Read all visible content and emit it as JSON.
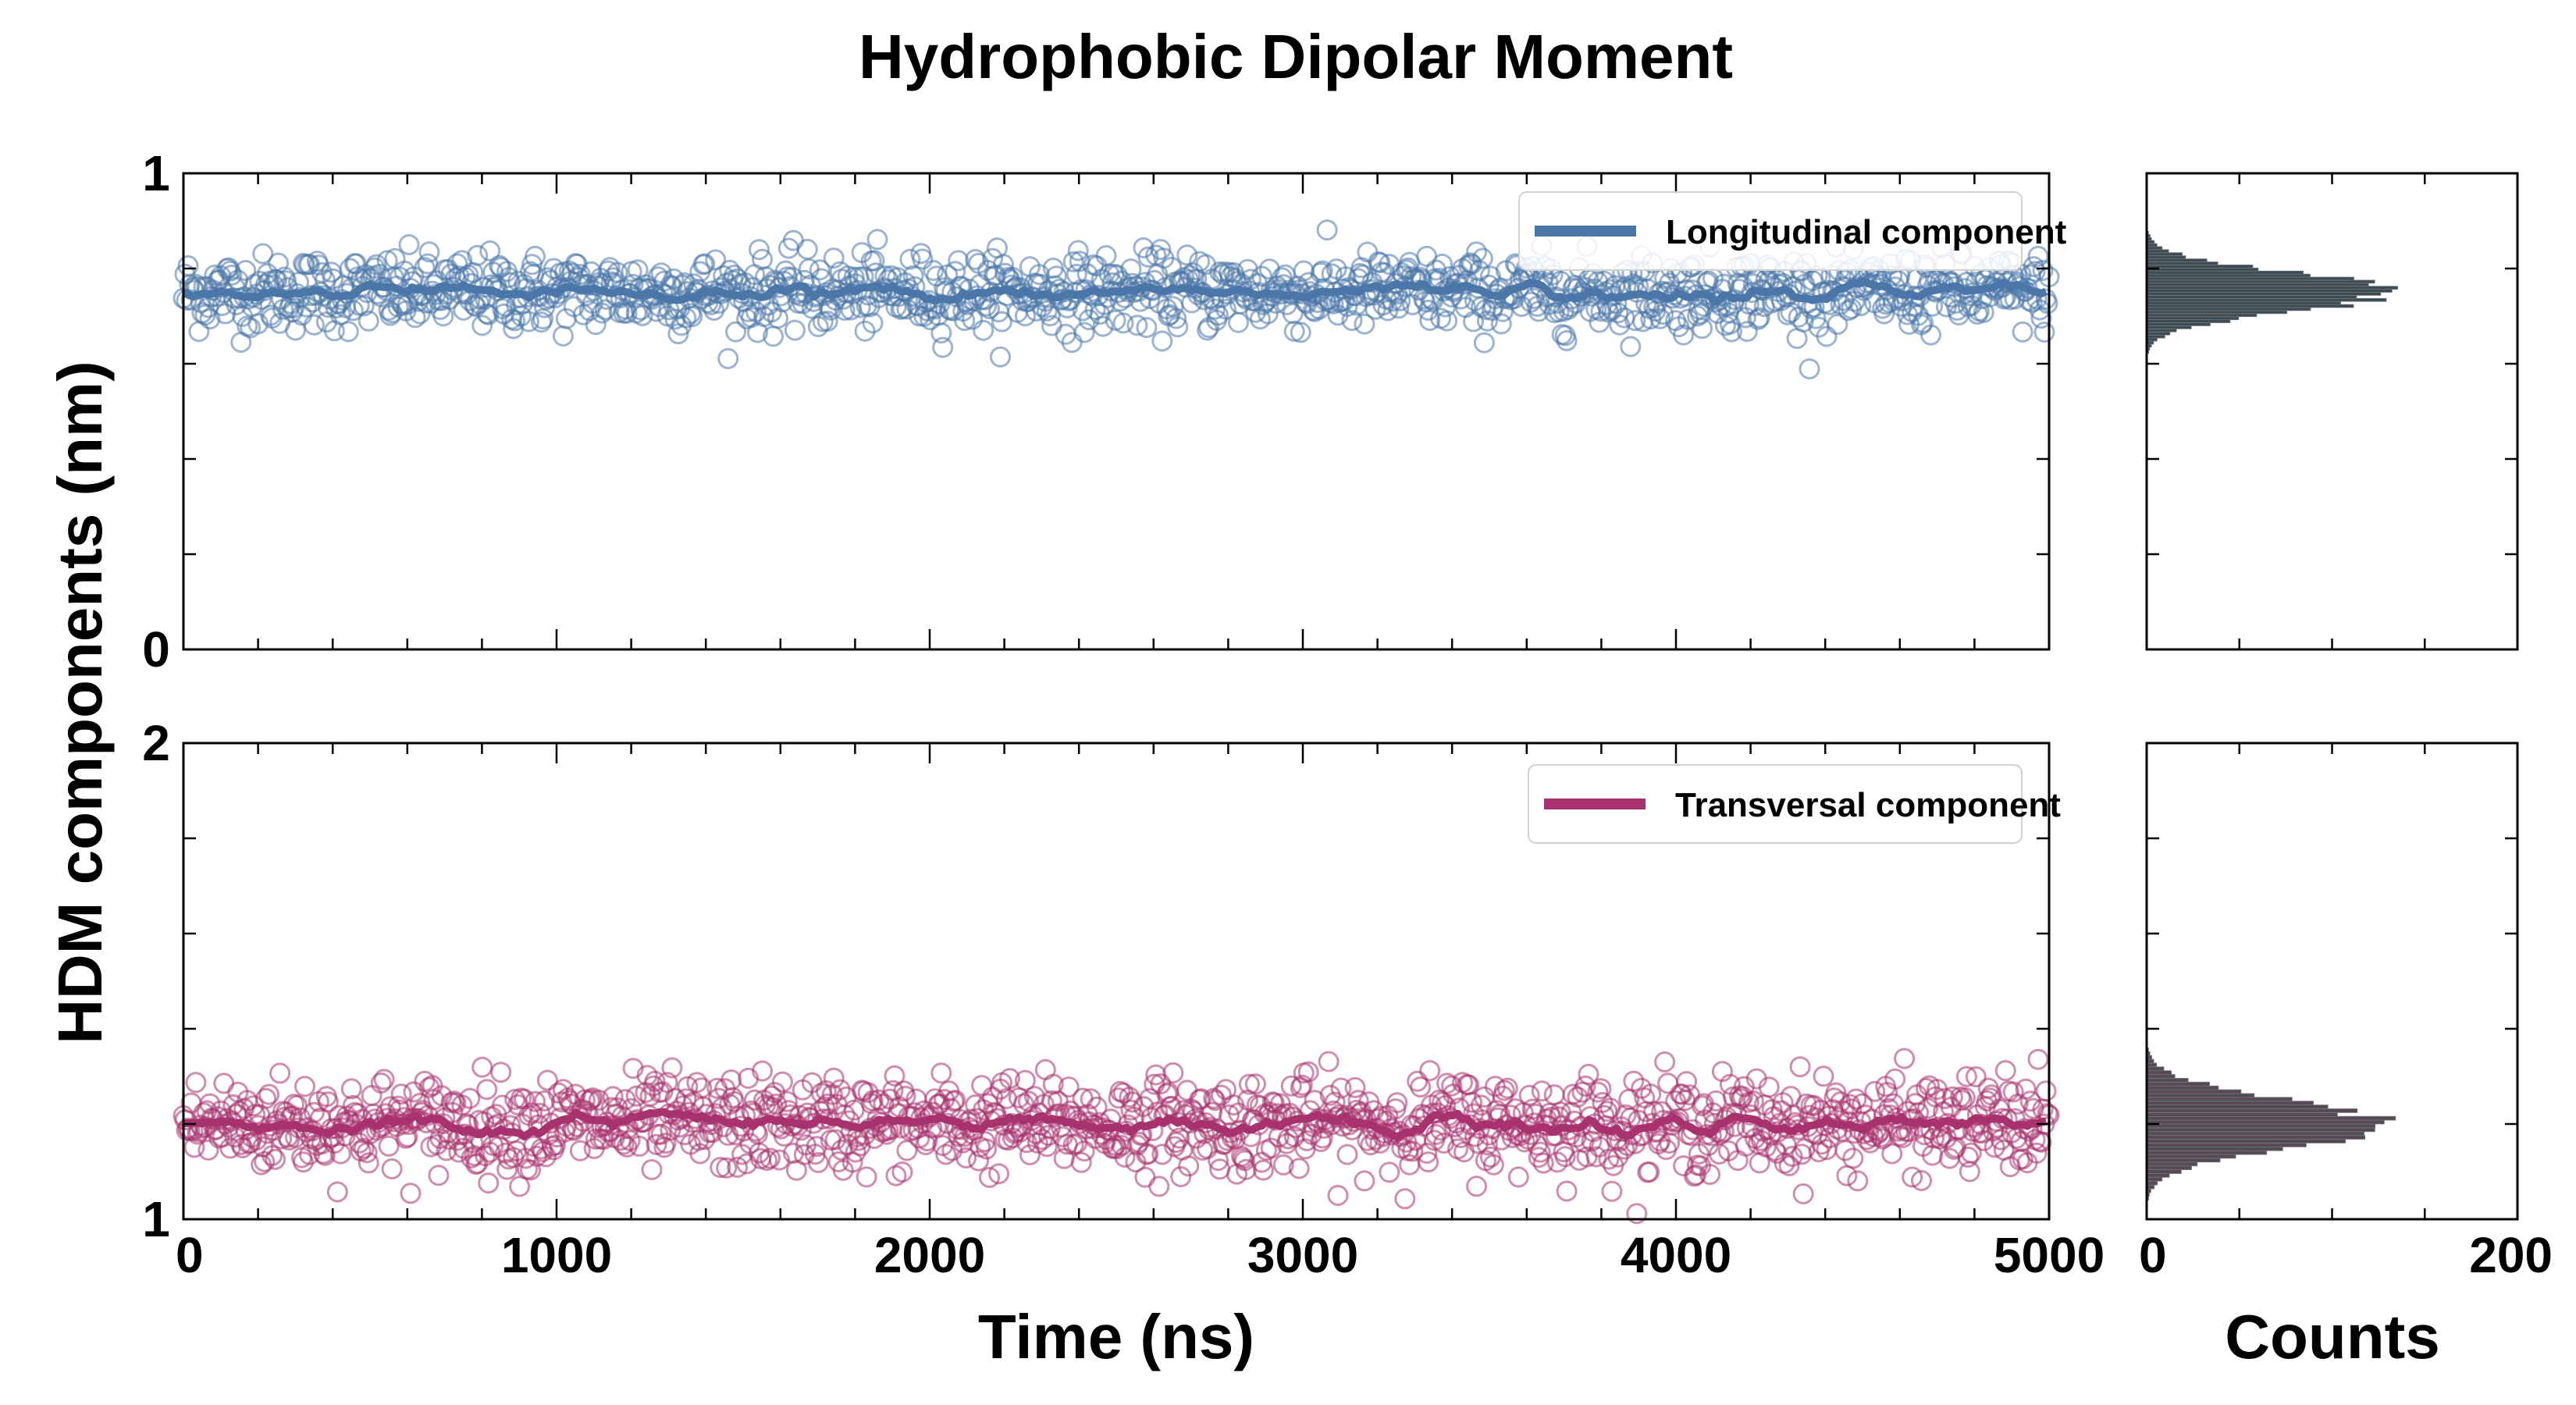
{
  "title": "Hydrophobic Dipolar Moment",
  "ylabel": "HDM components (nm)",
  "xlabel": "Time (ns)",
  "hist_xlabel": "Counts",
  "chart_data": [
    {
      "type": "scatter",
      "panel": "top-time-series",
      "series": [
        {
          "name": "Longitudinal component",
          "color": "#4a76a8",
          "mean": 0.75,
          "spread": 0.04
        }
      ],
      "x_range": [
        0,
        5000
      ],
      "ylim": [
        0,
        1
      ],
      "x_ticks": [
        "0",
        "1000",
        "2000",
        "3000",
        "4000",
        "5000"
      ],
      "y_ticks": [
        "0",
        "1"
      ],
      "legend": "top-right"
    },
    {
      "type": "bar",
      "panel": "top-histogram",
      "orientation": "horizontal",
      "peak_value": 0.75,
      "peak_count": 130,
      "xlim": [
        0,
        200
      ],
      "ylim": [
        0,
        1
      ],
      "color": "#1f2a33"
    },
    {
      "type": "scatter",
      "panel": "bottom-time-series",
      "series": [
        {
          "name": "Transversal component",
          "color": "#a8326e",
          "mean": 1.2,
          "spread": 0.05
        }
      ],
      "x_range": [
        0,
        5000
      ],
      "ylim": [
        1,
        2
      ],
      "x_ticks": [
        "0",
        "1000",
        "2000",
        "3000",
        "4000",
        "5000"
      ],
      "y_ticks": [
        "1",
        "2"
      ],
      "legend": "top-right"
    },
    {
      "type": "bar",
      "panel": "bottom-histogram",
      "orientation": "horizontal",
      "peak_value": 1.2,
      "peak_count": 125,
      "xlim": [
        0,
        200
      ],
      "ylim": [
        1,
        2
      ],
      "color": "#3a2a33",
      "x_ticks": [
        "0",
        "200"
      ]
    }
  ]
}
